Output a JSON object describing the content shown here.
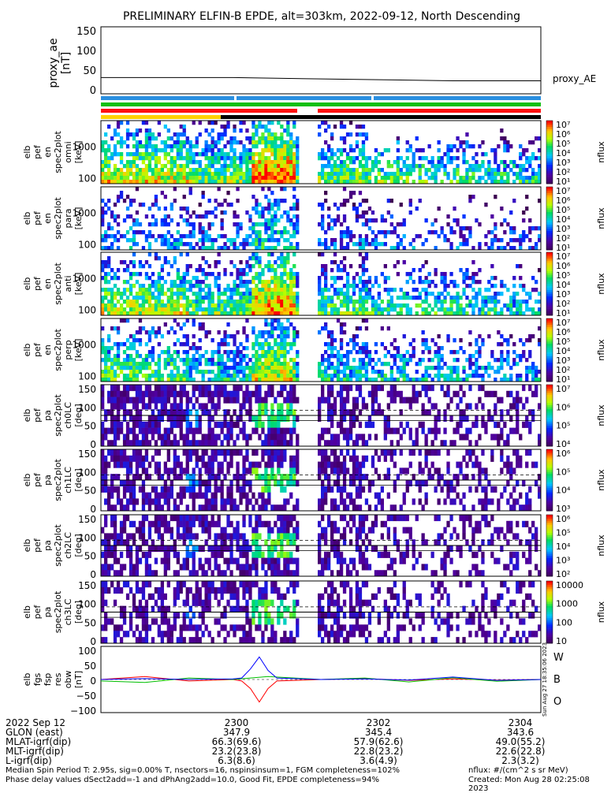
{
  "title": "PRELIMINARY ELFIN-B EPDE, alt=303km, 2022-09-12, North Descending",
  "chart_data": [
    {
      "type": "line",
      "panel": "proxy_ae",
      "ylabel_lines": [
        "proxy_ae",
        "[nT]"
      ],
      "yticks": [
        "150",
        "100",
        "50",
        "0"
      ],
      "ylim": [
        -10,
        155
      ],
      "series": [
        {
          "name": "proxy_AE",
          "x": [
            0,
            0.3,
            0.55,
            0.8,
            1.0
          ],
          "values": [
            30,
            30,
            26,
            22,
            22
          ]
        }
      ]
    },
    {
      "type": "heatmap",
      "panel": "spec-omni",
      "ylabel_lines": [
        "elb",
        "pef",
        "en",
        "spec2plot",
        "omni",
        "[keV]"
      ],
      "yticks": [
        "1000",
        "100"
      ],
      "scale": "log",
      "cbar_label": "nflux",
      "cbar_ticks": [
        "10⁷",
        "10⁶",
        "10⁵",
        "10⁴",
        "10³",
        "10²",
        "10¹"
      ]
    },
    {
      "type": "heatmap",
      "panel": "spec-para",
      "ylabel_lines": [
        "elb",
        "pef",
        "en",
        "spec2plot",
        "para",
        "[keV]"
      ],
      "yticks": [
        "1000",
        "100"
      ],
      "scale": "log",
      "cbar_label": "nflux",
      "cbar_ticks": [
        "10⁷",
        "10⁶",
        "10⁵",
        "10⁴",
        "10³",
        "10²",
        "10¹"
      ]
    },
    {
      "type": "heatmap",
      "panel": "spec-anti",
      "ylabel_lines": [
        "elb",
        "pef",
        "en",
        "spec2plot",
        "anti",
        "[keV]"
      ],
      "yticks": [
        "1000",
        "100"
      ],
      "scale": "log",
      "cbar_label": "nflux",
      "cbar_ticks": [
        "10⁷",
        "10⁶",
        "10⁵",
        "10⁴",
        "10³",
        "10²",
        "10¹"
      ]
    },
    {
      "type": "heatmap",
      "panel": "spec-perp",
      "ylabel_lines": [
        "elb",
        "pef",
        "en",
        "spec2plot",
        "perp",
        "[keV]"
      ],
      "yticks": [
        "1000",
        "100"
      ],
      "scale": "log",
      "cbar_label": "nflux",
      "cbar_ticks": [
        "10⁷",
        "10⁶",
        "10⁵",
        "10⁴",
        "10³",
        "10²",
        "10¹"
      ]
    },
    {
      "type": "heatmap",
      "panel": "ch0LC",
      "ylabel_lines": [
        "elb",
        "pef",
        "pa",
        "spec2plot",
        "ch0LC",
        "[deg]"
      ],
      "yticks": [
        "150",
        "100",
        "50",
        "0"
      ],
      "ylim": [
        0,
        180
      ],
      "cbar_label": "nflux",
      "cbar_ticks": [
        "10⁷",
        "10⁶",
        "10⁵",
        "10⁴"
      ]
    },
    {
      "type": "heatmap",
      "panel": "ch1LC",
      "ylabel_lines": [
        "elb",
        "pef",
        "pa",
        "spec2plot",
        "ch1LC",
        "[deg]"
      ],
      "yticks": [
        "150",
        "100",
        "50",
        "0"
      ],
      "ylim": [
        0,
        180
      ],
      "cbar_label": "nflux",
      "cbar_ticks": [
        "10⁶",
        "10⁵",
        "10⁴",
        "10³"
      ]
    },
    {
      "type": "heatmap",
      "panel": "ch2LC",
      "ylabel_lines": [
        "elb",
        "pef",
        "pa",
        "spec2plot",
        "ch2LC",
        "[deg]"
      ],
      "yticks": [
        "150",
        "100",
        "50",
        "0"
      ],
      "ylim": [
        0,
        180
      ],
      "cbar_label": "nflux",
      "cbar_ticks": [
        "10⁶",
        "10⁵",
        "10⁴",
        "10³",
        "10²"
      ]
    },
    {
      "type": "heatmap",
      "panel": "ch3LC",
      "ylabel_lines": [
        "elb",
        "pef",
        "pa",
        "spec2plot",
        "ch3LC",
        "[deg]"
      ],
      "yticks": [
        "150",
        "100",
        "50",
        "0"
      ],
      "ylim": [
        0,
        180
      ],
      "cbar_label": "nflux",
      "cbar_ticks": [
        "10000",
        "1000",
        "100",
        "10"
      ]
    },
    {
      "type": "line",
      "panel": "fgs",
      "ylabel_lines": [
        "elb",
        "fgs",
        "fsp",
        "res",
        "obw",
        "[nT]"
      ],
      "yticks": [
        "100",
        "50",
        "0",
        "−50",
        "−100"
      ],
      "ylim": [
        -110,
        110
      ],
      "legend": [
        "W",
        "B",
        "O"
      ],
      "series": [
        {
          "name": "W",
          "color": "#ff0000",
          "x": [
            0,
            0.1,
            0.2,
            0.3,
            0.32,
            0.34,
            0.36,
            0.38,
            0.4,
            0.5,
            0.6,
            0.7,
            0.8,
            0.9,
            1.0
          ],
          "values": [
            0,
            10,
            -5,
            0,
            -5,
            -30,
            -75,
            -30,
            -5,
            0,
            3,
            -3,
            2,
            -2,
            0
          ]
        },
        {
          "name": "B",
          "color": "#00c000",
          "x": [
            0,
            0.1,
            0.2,
            0.3,
            0.34,
            0.38,
            0.5,
            0.6,
            0.7,
            0.8,
            0.9,
            1.0
          ],
          "values": [
            -5,
            -10,
            5,
            0,
            5,
            10,
            0,
            5,
            -8,
            6,
            -6,
            0
          ]
        },
        {
          "name": "O",
          "color": "#0000ff",
          "x": [
            0,
            0.1,
            0.2,
            0.3,
            0.32,
            0.34,
            0.36,
            0.38,
            0.4,
            0.5,
            0.6,
            0.7,
            0.8,
            0.9,
            1.0
          ],
          "values": [
            0,
            3,
            0,
            2,
            5,
            35,
            75,
            30,
            5,
            0,
            2,
            -2,
            8,
            -3,
            0
          ]
        }
      ]
    }
  ],
  "xaxis": {
    "rows": [
      [
        "2022 Sep 12",
        "2300",
        "2302",
        "2304"
      ],
      [
        "GLON (east)",
        "347.9",
        "345.4",
        "343.6"
      ],
      [
        "MLAT-igrf(dip)",
        "66.3(69.6)",
        "57.9(62.6)",
        "49.0(55.2)"
      ],
      [
        "MLT-igrf(dip)",
        "23.2(23.8)",
        "22.8(23.2)",
        "22.6(22.8)"
      ],
      [
        "L-igrf(dip)",
        "6.3(8.6)",
        "3.6(4.9)",
        "2.3(3.2)"
      ]
    ]
  },
  "footer": {
    "line1": "Median Spin Period T: 2.95s, sig=0.00% T, nsectors=16, nspinsinsum=1, FGM completeness=102%",
    "line2": "Phase delay values dSect2add=-1 and dPhAng2add=10.0, Good Fit, EPDE completeness=94%",
    "units": "nflux: #/(cm^2 s sr MeV)",
    "created": "Created: Mon Aug 28 02:25:08 2023",
    "stamp": "Sun Aug 27 18:35:06 2023"
  },
  "colors": {
    "W": "#ff0000",
    "B": "#00c000",
    "O": "#0000ff",
    "bar_blue": "#2a8fe0",
    "bar_green": "#10c010",
    "bar_red": "#ff1010",
    "bar_yellow": "#ffd000"
  }
}
